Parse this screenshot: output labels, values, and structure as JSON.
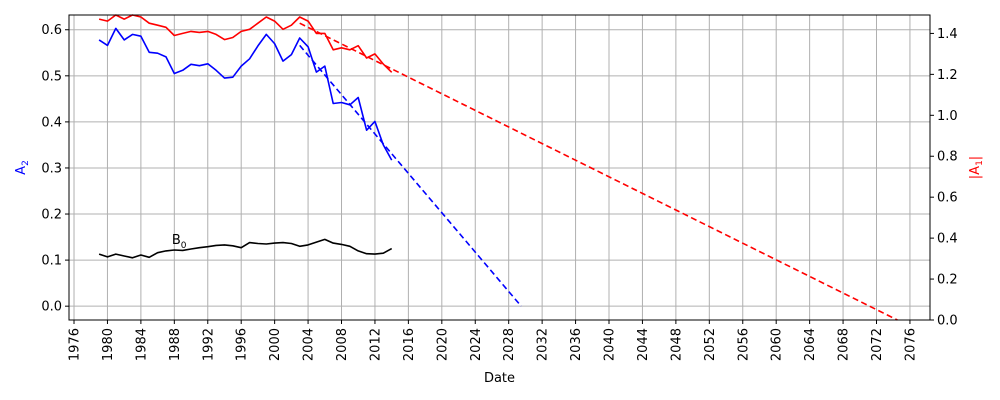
{
  "chart_data": {
    "type": "line",
    "xlabel": "Date",
    "ylabel_left": "A_2",
    "ylabel_right": "|A_1|",
    "xlim": [
      1975.4,
      2078.4
    ],
    "ylim_left": [
      -0.03,
      0.632
    ],
    "ylim_right": [
      0,
      1.49
    ],
    "grid": true,
    "colors": {
      "A2": "#0000ff",
      "A1": "#ff0000",
      "B0": "#000000",
      "grid": "#b0b0b0"
    },
    "x_ticks": [
      1976,
      1980,
      1984,
      1988,
      1992,
      1996,
      2000,
      2004,
      2008,
      2012,
      2016,
      2020,
      2024,
      2028,
      2032,
      2036,
      2040,
      2044,
      2048,
      2052,
      2056,
      2060,
      2064,
      2068,
      2072,
      2076
    ],
    "y_ticks_left": [
      "0.0",
      "0.1",
      "0.2",
      "0.3",
      "0.4",
      "0.5",
      "0.6"
    ],
    "y_ticks_right": [
      "0.0",
      "0.2",
      "0.4",
      "0.6",
      "0.8",
      "1.0",
      "1.2",
      "1.4"
    ],
    "annotation": {
      "text": "B",
      "subscript": "0",
      "x": 1987.7,
      "y": 0.135
    },
    "series": [
      {
        "key": "A2",
        "axis": "left",
        "style": "solid",
        "x": [
          1979,
          1980,
          1981,
          1982,
          1983,
          1984,
          1985,
          1986,
          1987,
          1988,
          1989,
          1990,
          1991,
          1992,
          1993,
          1994,
          1995,
          1996,
          1997,
          1998,
          1999,
          2000,
          2001,
          2002,
          2003,
          2004,
          2005,
          2006,
          2007,
          2008,
          2009,
          2010,
          2011,
          2012,
          2013,
          2014
        ],
        "y": [
          0.578,
          0.566,
          0.603,
          0.578,
          0.59,
          0.586,
          0.551,
          0.549,
          0.541,
          0.505,
          0.512,
          0.525,
          0.522,
          0.526,
          0.512,
          0.495,
          0.497,
          0.521,
          0.537,
          0.565,
          0.59,
          0.57,
          0.532,
          0.546,
          0.582,
          0.563,
          0.508,
          0.521,
          0.44,
          0.442,
          0.437,
          0.453,
          0.382,
          0.401,
          0.35,
          0.317
        ]
      },
      {
        "key": "A2_trend",
        "axis": "left",
        "style": "dashed",
        "x": [
          2003,
          2029.5
        ],
        "y": [
          0.566,
          0.0
        ]
      },
      {
        "key": "A1",
        "axis": "right",
        "style": "solid",
        "x": [
          1979,
          1980,
          1981,
          1982,
          1983,
          1984,
          1985,
          1986,
          1987,
          1988,
          1989,
          1990,
          1991,
          1992,
          1993,
          1994,
          1995,
          1996,
          1997,
          1998,
          1999,
          2000,
          2001,
          2002,
          2003,
          2004,
          2005,
          2006,
          2007,
          2008,
          2009,
          2010,
          2011,
          2012,
          2013,
          2014
        ],
        "y": [
          1.47,
          1.46,
          1.49,
          1.47,
          1.49,
          1.48,
          1.45,
          1.44,
          1.43,
          1.39,
          1.4,
          1.41,
          1.405,
          1.41,
          1.395,
          1.37,
          1.38,
          1.41,
          1.42,
          1.45,
          1.48,
          1.46,
          1.42,
          1.44,
          1.48,
          1.46,
          1.4,
          1.4,
          1.32,
          1.33,
          1.32,
          1.34,
          1.28,
          1.3,
          1.25,
          1.21
        ]
      },
      {
        "key": "A1_trend",
        "axis": "right",
        "style": "dashed",
        "x": [
          2003,
          2074.5
        ],
        "y": [
          1.45,
          0.0
        ]
      },
      {
        "key": "B0",
        "axis": "left",
        "style": "solid",
        "x": [
          1979,
          1980,
          1981,
          1982,
          1983,
          1984,
          1985,
          1986,
          1987,
          1988,
          1989,
          1990,
          1991,
          1992,
          1993,
          1994,
          1995,
          1996,
          1997,
          1998,
          1999,
          2000,
          2001,
          2002,
          2003,
          2004,
          2005,
          2006,
          2007,
          2008,
          2009,
          2010,
          2011,
          2012,
          2013,
          2014
        ],
        "y": [
          0.113,
          0.107,
          0.113,
          0.109,
          0.105,
          0.111,
          0.106,
          0.116,
          0.12,
          0.122,
          0.121,
          0.124,
          0.127,
          0.129,
          0.132,
          0.133,
          0.131,
          0.127,
          0.138,
          0.136,
          0.135,
          0.137,
          0.138,
          0.136,
          0.13,
          0.133,
          0.139,
          0.145,
          0.137,
          0.134,
          0.13,
          0.12,
          0.114,
          0.113,
          0.115,
          0.125
        ]
      }
    ]
  }
}
